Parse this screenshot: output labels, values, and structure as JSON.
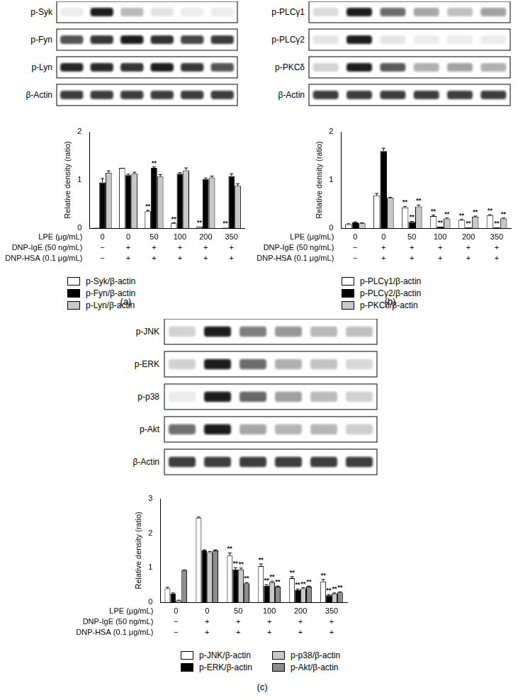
{
  "chart_data": [
    {
      "type": "bar",
      "panel_label": "(a)",
      "blot_labels": [
        "p-Syk",
        "p-Fyn",
        "p-Lyn",
        "β-Actin"
      ],
      "y_label": "Relative density (ratio)",
      "x_label": "LPE (μg/mL)",
      "categories": [
        "0",
        "0",
        "50",
        "100",
        "200",
        "350"
      ],
      "conditions": [
        {
          "label": "DNP-IgE (50 ng/mL)",
          "values": [
            "−",
            "+",
            "+",
            "+",
            "+",
            "+"
          ]
        },
        {
          "label": "DNP-HSA (0.1 μg/mL)",
          "values": [
            "−",
            "+",
            "+",
            "+",
            "+",
            "+"
          ]
        }
      ],
      "ylim": [
        0,
        2
      ],
      "yticks": [
        0,
        1,
        2
      ],
      "grid": false,
      "legend": "bottom",
      "series": [
        {
          "name": "p-Syk/β-actin",
          "color": "#ffffff",
          "values": [
            0.01,
            1.25,
            0.35,
            0.1,
            0.03,
            0.01
          ],
          "errors": [
            0.0,
            0.0,
            0.02,
            0.01,
            0.0,
            0.0
          ],
          "annotations": [
            null,
            null,
            "**",
            "**",
            "**",
            "**"
          ]
        },
        {
          "name": "p-Fyn/β-actin",
          "color": "#000000",
          "values": [
            0.95,
            1.1,
            1.25,
            1.13,
            1.02,
            1.08
          ],
          "errors": [
            0.08,
            0.02,
            0.02,
            0.02,
            0.02,
            0.05
          ],
          "annotations": [
            null,
            null,
            "**",
            null,
            null,
            null
          ]
        },
        {
          "name": "p-Lyn/β-actin",
          "color": "#c8c8c8",
          "values": [
            1.15,
            1.13,
            1.07,
            1.2,
            1.05,
            0.88
          ],
          "errors": [
            0.04,
            0.03,
            0.04,
            0.05,
            0.03,
            0.04
          ],
          "annotations": [
            null,
            null,
            null,
            null,
            null,
            null
          ]
        }
      ]
    },
    {
      "type": "bar",
      "panel_label": "(b)",
      "blot_labels": [
        "p-PLCγ1",
        "p-PLCγ2",
        "p-PKCδ",
        "β-Actin"
      ],
      "y_label": "Relative density (ratio)",
      "x_label": "LPE (μg/mL)",
      "categories": [
        "0",
        "0",
        "50",
        "100",
        "200",
        "350"
      ],
      "conditions": [
        {
          "label": "DNP-IgE (50 ng/mL)",
          "values": [
            "−",
            "+",
            "+",
            "+",
            "+",
            "+"
          ]
        },
        {
          "label": "DNP-HSA (0.1 μg/mL)",
          "values": [
            "−",
            "+",
            "+",
            "+",
            "+",
            "+"
          ]
        }
      ],
      "ylim": [
        0,
        2
      ],
      "yticks": [
        0,
        1,
        2
      ],
      "grid": false,
      "legend": "bottom",
      "series": [
        {
          "name": "p-PLCγ1/β-actin",
          "color": "#ffffff",
          "values": [
            0.08,
            0.68,
            0.43,
            0.25,
            0.17,
            0.27
          ],
          "errors": [
            0.01,
            0.04,
            0.02,
            0.02,
            0.01,
            0.01
          ],
          "annotations": [
            null,
            null,
            "**",
            "**",
            "**",
            "**"
          ]
        },
        {
          "name": "p-PLCγ2/β-actin",
          "color": "#000000",
          "values": [
            0.12,
            1.6,
            0.13,
            0.03,
            0.02,
            0.02
          ],
          "errors": [
            0.01,
            0.06,
            0.01,
            0.0,
            0.0,
            0.0
          ],
          "annotations": [
            null,
            null,
            "**",
            "**",
            "**",
            "**"
          ]
        },
        {
          "name": "p-PKCδ/β-actin",
          "color": "#c8c8c8",
          "values": [
            0.1,
            0.63,
            0.45,
            0.2,
            0.24,
            0.2
          ],
          "errors": [
            0.01,
            0.01,
            0.03,
            0.01,
            0.01,
            0.01
          ],
          "annotations": [
            null,
            null,
            "**",
            "**",
            "**",
            "**"
          ]
        }
      ]
    },
    {
      "type": "bar",
      "panel_label": "(c)",
      "blot_labels": [
        "p-JNK",
        "p-ERK",
        "p-p38",
        "p-Akt",
        "β-Actin"
      ],
      "y_label": "Relative density (ratio)",
      "x_label": "LPE (μg/mL)",
      "categories": [
        "0",
        "0",
        "50",
        "100",
        "200",
        "350"
      ],
      "conditions": [
        {
          "label": "DNP-IgE (50 ng/mL)",
          "values": [
            "−",
            "+",
            "+",
            "+",
            "+",
            "+"
          ]
        },
        {
          "label": "DNP-HSA (0.1 μg/mL)",
          "values": [
            "−",
            "+",
            "+",
            "+",
            "+",
            "+"
          ]
        }
      ],
      "ylim": [
        0,
        3
      ],
      "yticks": [
        0,
        1,
        2,
        3
      ],
      "grid": false,
      "legend": "bottom",
      "series": [
        {
          "name": "p-JNK/β-actin",
          "color": "#ffffff",
          "values": [
            0.4,
            2.45,
            1.35,
            1.05,
            0.7,
            0.6
          ],
          "errors": [
            0.03,
            0.02,
            0.08,
            0.06,
            0.04,
            0.06
          ],
          "annotations": [
            null,
            null,
            "**",
            "**",
            "**",
            "**"
          ]
        },
        {
          "name": "p-ERK/β-actin",
          "color": "#000000",
          "values": [
            0.25,
            1.5,
            0.95,
            0.48,
            0.35,
            0.2
          ],
          "errors": [
            0.02,
            0.02,
            0.05,
            0.03,
            0.03,
            0.02
          ],
          "annotations": [
            null,
            null,
            "**",
            "**",
            "**",
            "**"
          ]
        },
        {
          "name": "p-p38/β-actin",
          "color": "#c8c8c8",
          "values": [
            0.05,
            1.45,
            0.95,
            0.58,
            0.4,
            0.25
          ],
          "errors": [
            0.01,
            0.02,
            0.04,
            0.03,
            0.02,
            0.02
          ],
          "annotations": [
            null,
            null,
            "**",
            "**",
            "**",
            "**"
          ]
        },
        {
          "name": "p-Akt/β-actin",
          "color": "#8c8c8c",
          "values": [
            0.93,
            1.5,
            0.55,
            0.45,
            0.45,
            0.28
          ],
          "errors": [
            0.01,
            0.02,
            0.02,
            0.02,
            0.02,
            0.02
          ],
          "annotations": [
            null,
            null,
            "**",
            "**",
            "**",
            "**"
          ]
        }
      ]
    }
  ]
}
